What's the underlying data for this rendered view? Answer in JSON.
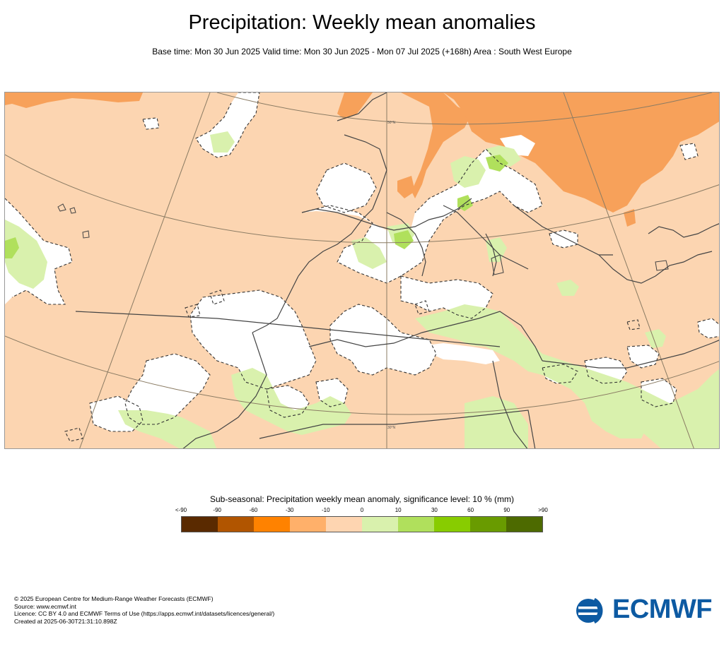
{
  "title": "Precipitation: Weekly mean anomalies",
  "subtitle": "Base time: Mon 30 Jun 2025 Valid time: Mon 30 Jun 2025 - Mon 07 Jul 2025 (+168h) Area : South West Europe",
  "map": {
    "grid_labels": [
      "50°N",
      "30°N"
    ],
    "colors": {
      "ocean_and_land_base": "#fcd5b1",
      "wet_anomaly_light": "#d9f1ad",
      "wet_anomaly_medium": "#b0e05c",
      "dry_anomaly_light": "#fbb06a",
      "dry_anomaly_medium": "#f7a15a",
      "no_significance": "#ffffff",
      "coastline": "#444444",
      "graticule": "#8a7b63"
    }
  },
  "legend": {
    "title": "Sub-seasonal: Precipitation weekly mean anomaly, significance level: 10 % (mm)",
    "ticks": [
      "<-90",
      "-90",
      "-60",
      "-30",
      "-10",
      "0",
      "10",
      "30",
      "60",
      "90",
      ">90"
    ],
    "colors": [
      "#5a2a00",
      "#b15500",
      "#ff8200",
      "#ffb06a",
      "#fed5b1",
      "#d9f1ad",
      "#b0e05c",
      "#88cc00",
      "#699b00",
      "#4d6a00"
    ]
  },
  "footer": {
    "copyright": "© 2025 European Centre for Medium-Range Weather Forecasts (ECMWF)",
    "source": "Source: www.ecmwf.int",
    "licence": "Licence: CC BY 4.0 and ECMWF Terms of Use (https://apps.ecmwf.int/datasets/licences/general/)",
    "created": "Created at 2025-06-30T21:31:10.898Z"
  },
  "logo": {
    "text": "ECMWF",
    "color": "#0d5aa2"
  }
}
